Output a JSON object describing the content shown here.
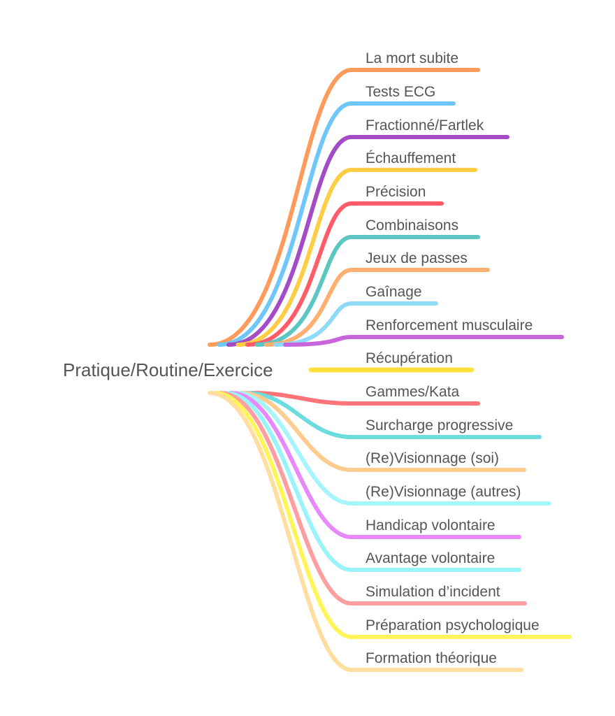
{
  "central_topic": "Pratique/Routine/Exercice",
  "branches": [
    {
      "label": "La mort subite",
      "color": "#FF9B5A"
    },
    {
      "label": "Tests ECG",
      "color": "#6EC6FA"
    },
    {
      "label": "Fractionné/Fartlek",
      "color": "#A44CC8"
    },
    {
      "label": "Échauffement",
      "color": "#FFCD45"
    },
    {
      "label": "Précision",
      "color": "#FF5C6A"
    },
    {
      "label": "Combinaisons",
      "color": "#5CC6C4"
    },
    {
      "label": "Jeux de passes",
      "color": "#FFB070"
    },
    {
      "label": "Gaînage",
      "color": "#8EDBF8"
    },
    {
      "label": "Renforcement musculaire",
      "color": "#C765DD"
    },
    {
      "label": "Récupération",
      "color": "#FFE13D"
    },
    {
      "label": "Gammes/Kata",
      "color": "#FF7479"
    },
    {
      "label": "Surcharge progressive",
      "color": "#6CDCDE"
    },
    {
      "label": "(Re)Visionnage (soi)",
      "color": "#FFCB8E"
    },
    {
      "label": "(Re)Visionnage (autres)",
      "color": "#A7F5FC"
    },
    {
      "label": "Handicap volontaire",
      "color": "#E889FB"
    },
    {
      "label": "Avantage volontaire",
      "color": "#99F4FA"
    },
    {
      "label": "Simulation d’incident",
      "color": "#FF9EA0"
    },
    {
      "label": "Préparation psychologique",
      "color": "#FFF558"
    },
    {
      "label": "Formation théorique",
      "color": "#FFDEA0"
    }
  ]
}
